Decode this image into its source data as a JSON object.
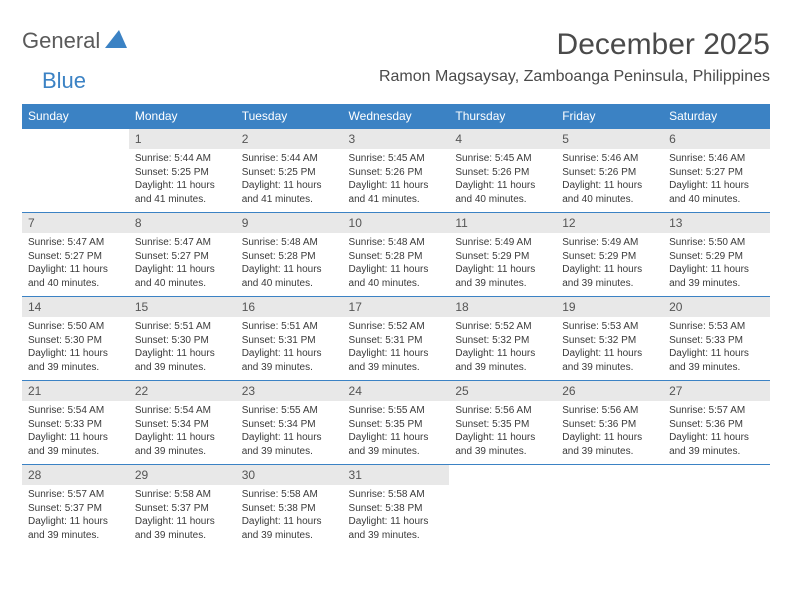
{
  "logo": {
    "part1": "General",
    "part2": "Blue"
  },
  "title": "December 2025",
  "location": "Ramon Magsaysay, Zamboanga Peninsula, Philippines",
  "columns": [
    "Sunday",
    "Monday",
    "Tuesday",
    "Wednesday",
    "Thursday",
    "Friday",
    "Saturday"
  ],
  "colors": {
    "header_bg": "#3b82c4",
    "header_fg": "#ffffff",
    "daynum_bg": "#e8e8e8",
    "body_fg": "#3a3a3a",
    "rule": "#3b82c4"
  },
  "weeks": [
    [
      null,
      {
        "n": "1",
        "sr": "5:44 AM",
        "ss": "5:25 PM",
        "dl": "11 hours and 41 minutes."
      },
      {
        "n": "2",
        "sr": "5:44 AM",
        "ss": "5:25 PM",
        "dl": "11 hours and 41 minutes."
      },
      {
        "n": "3",
        "sr": "5:45 AM",
        "ss": "5:26 PM",
        "dl": "11 hours and 41 minutes."
      },
      {
        "n": "4",
        "sr": "5:45 AM",
        "ss": "5:26 PM",
        "dl": "11 hours and 40 minutes."
      },
      {
        "n": "5",
        "sr": "5:46 AM",
        "ss": "5:26 PM",
        "dl": "11 hours and 40 minutes."
      },
      {
        "n": "6",
        "sr": "5:46 AM",
        "ss": "5:27 PM",
        "dl": "11 hours and 40 minutes."
      }
    ],
    [
      {
        "n": "7",
        "sr": "5:47 AM",
        "ss": "5:27 PM",
        "dl": "11 hours and 40 minutes."
      },
      {
        "n": "8",
        "sr": "5:47 AM",
        "ss": "5:27 PM",
        "dl": "11 hours and 40 minutes."
      },
      {
        "n": "9",
        "sr": "5:48 AM",
        "ss": "5:28 PM",
        "dl": "11 hours and 40 minutes."
      },
      {
        "n": "10",
        "sr": "5:48 AM",
        "ss": "5:28 PM",
        "dl": "11 hours and 40 minutes."
      },
      {
        "n": "11",
        "sr": "5:49 AM",
        "ss": "5:29 PM",
        "dl": "11 hours and 39 minutes."
      },
      {
        "n": "12",
        "sr": "5:49 AM",
        "ss": "5:29 PM",
        "dl": "11 hours and 39 minutes."
      },
      {
        "n": "13",
        "sr": "5:50 AM",
        "ss": "5:29 PM",
        "dl": "11 hours and 39 minutes."
      }
    ],
    [
      {
        "n": "14",
        "sr": "5:50 AM",
        "ss": "5:30 PM",
        "dl": "11 hours and 39 minutes."
      },
      {
        "n": "15",
        "sr": "5:51 AM",
        "ss": "5:30 PM",
        "dl": "11 hours and 39 minutes."
      },
      {
        "n": "16",
        "sr": "5:51 AM",
        "ss": "5:31 PM",
        "dl": "11 hours and 39 minutes."
      },
      {
        "n": "17",
        "sr": "5:52 AM",
        "ss": "5:31 PM",
        "dl": "11 hours and 39 minutes."
      },
      {
        "n": "18",
        "sr": "5:52 AM",
        "ss": "5:32 PM",
        "dl": "11 hours and 39 minutes."
      },
      {
        "n": "19",
        "sr": "5:53 AM",
        "ss": "5:32 PM",
        "dl": "11 hours and 39 minutes."
      },
      {
        "n": "20",
        "sr": "5:53 AM",
        "ss": "5:33 PM",
        "dl": "11 hours and 39 minutes."
      }
    ],
    [
      {
        "n": "21",
        "sr": "5:54 AM",
        "ss": "5:33 PM",
        "dl": "11 hours and 39 minutes."
      },
      {
        "n": "22",
        "sr": "5:54 AM",
        "ss": "5:34 PM",
        "dl": "11 hours and 39 minutes."
      },
      {
        "n": "23",
        "sr": "5:55 AM",
        "ss": "5:34 PM",
        "dl": "11 hours and 39 minutes."
      },
      {
        "n": "24",
        "sr": "5:55 AM",
        "ss": "5:35 PM",
        "dl": "11 hours and 39 minutes."
      },
      {
        "n": "25",
        "sr": "5:56 AM",
        "ss": "5:35 PM",
        "dl": "11 hours and 39 minutes."
      },
      {
        "n": "26",
        "sr": "5:56 AM",
        "ss": "5:36 PM",
        "dl": "11 hours and 39 minutes."
      },
      {
        "n": "27",
        "sr": "5:57 AM",
        "ss": "5:36 PM",
        "dl": "11 hours and 39 minutes."
      }
    ],
    [
      {
        "n": "28",
        "sr": "5:57 AM",
        "ss": "5:37 PM",
        "dl": "11 hours and 39 minutes."
      },
      {
        "n": "29",
        "sr": "5:58 AM",
        "ss": "5:37 PM",
        "dl": "11 hours and 39 minutes."
      },
      {
        "n": "30",
        "sr": "5:58 AM",
        "ss": "5:38 PM",
        "dl": "11 hours and 39 minutes."
      },
      {
        "n": "31",
        "sr": "5:58 AM",
        "ss": "5:38 PM",
        "dl": "11 hours and 39 minutes."
      },
      null,
      null,
      null
    ]
  ],
  "labels": {
    "sunrise": "Sunrise:",
    "sunset": "Sunset:",
    "daylight": "Daylight:"
  }
}
